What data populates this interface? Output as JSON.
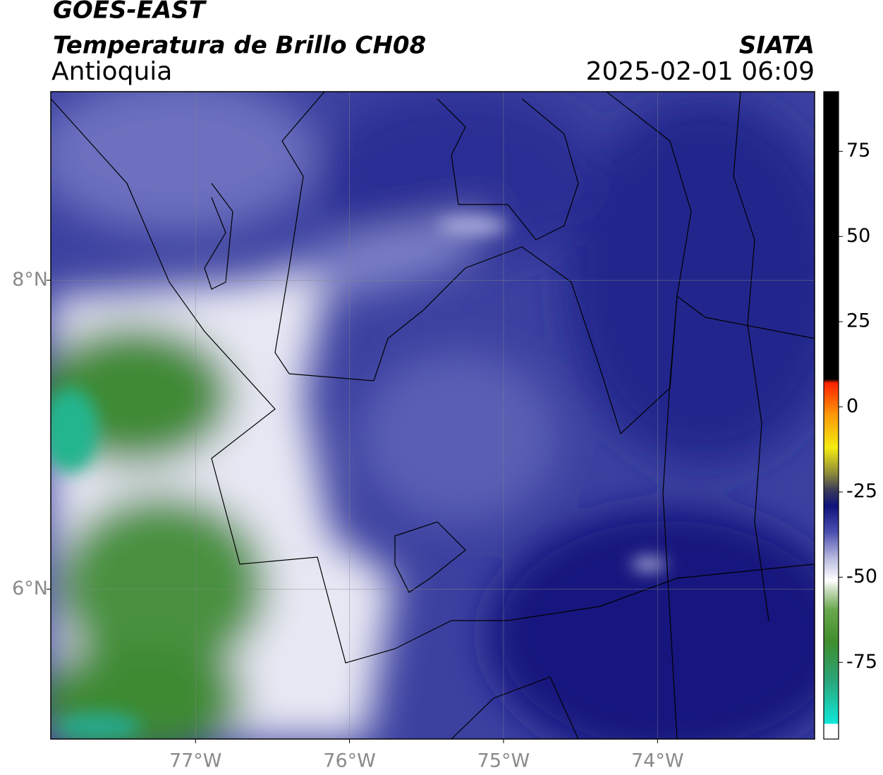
{
  "header": {
    "title": "GOES-EAST",
    "subtitle": "Temperatura de Brillo CH08",
    "region": "Antioquia",
    "source": "SIATA",
    "datetime": "2025-02-01 06:09"
  },
  "map": {
    "xlim": [
      -77.94,
      -72.98
    ],
    "ylim": [
      5.03,
      9.22
    ],
    "xticks": [
      {
        "value": -77,
        "label": "77°W"
      },
      {
        "value": -76,
        "label": "76°W"
      },
      {
        "value": -75,
        "label": "75°W"
      },
      {
        "value": -74,
        "label": "74°W"
      }
    ],
    "yticks": [
      {
        "value": 8,
        "label": "8°N"
      },
      {
        "value": 6,
        "label": "6°N"
      }
    ],
    "grid": true
  },
  "colorbar": {
    "lim": [
      -97.5,
      92.5
    ],
    "ticks": [
      75,
      50,
      25,
      0,
      -25,
      -50,
      -75
    ]
  }
}
